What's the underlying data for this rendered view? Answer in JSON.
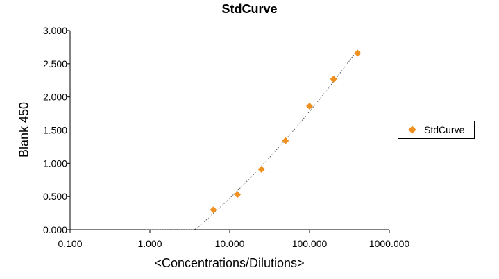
{
  "chart_data": {
    "type": "scatter",
    "title": "StdCurve",
    "xlabel": "<Concentrations/Dilutions>",
    "ylabel": "Blank 450",
    "x_scale": "log",
    "xlim": [
      0.1,
      1000
    ],
    "ylim": [
      0,
      3
    ],
    "x_ticks": [
      0.1,
      1,
      10,
      100,
      1000
    ],
    "x_tick_labels": [
      "0.100",
      "1.000",
      "10.000",
      "100.000",
      "1000.000"
    ],
    "y_ticks": [
      0,
      0.5,
      1,
      1.5,
      2,
      2.5,
      3
    ],
    "y_tick_labels": [
      "0.000",
      "0.500",
      "1.000",
      "1.500",
      "2.000",
      "2.500",
      "3.000"
    ],
    "grid": false,
    "legend": "right",
    "trendline": "dotted",
    "marker": "diamond",
    "color": "#f0901e",
    "series": [
      {
        "name": "StdCurve",
        "x": [
          6.25,
          12.5,
          25,
          50,
          100,
          200,
          400
        ],
        "y": [
          0.3,
          0.53,
          0.91,
          1.34,
          1.86,
          2.27,
          2.66
        ]
      }
    ]
  }
}
